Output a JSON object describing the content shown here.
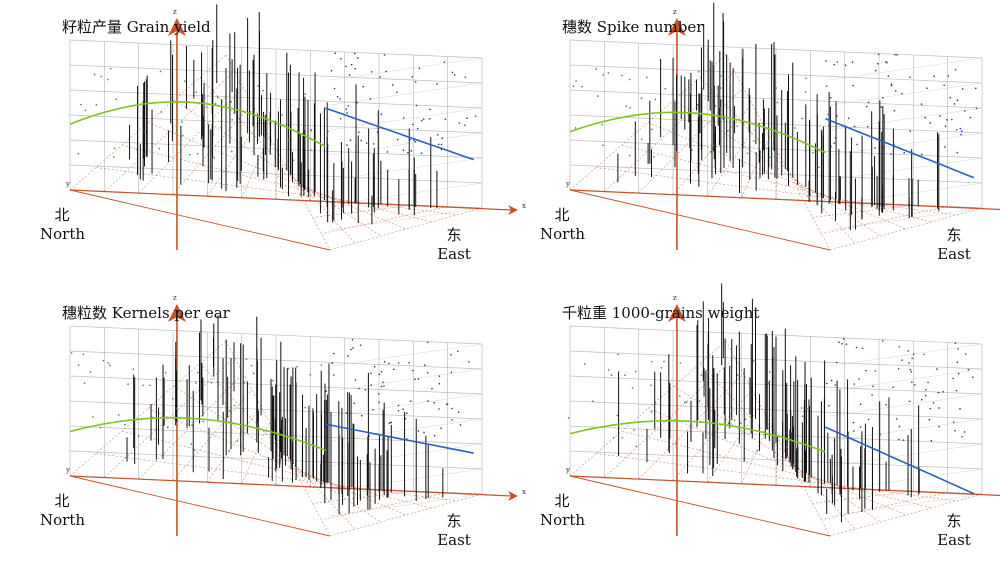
{
  "directions": {
    "north_cn": "北",
    "north_en": "North",
    "east_cn": "东",
    "east_en": "East"
  },
  "axis_letters": {
    "x": "x",
    "y": "y",
    "z": "z"
  },
  "colors": {
    "sticks": "#111111",
    "west_trend": "#7fc31c",
    "east_trend": "#2a5fbd",
    "west_points": "#2e8b2e",
    "east_points": "#1f2f9a",
    "grid": "#bdbdbd",
    "axis": "#c8522b"
  },
  "chart_data": [
    {
      "type": "scatter",
      "title": "籽粒产量 Grain yield",
      "xlabel": "x",
      "ylabel": "y",
      "zlabel": "z",
      "west_trend_peak": 0.62,
      "east_trend_slope": -0.3
    },
    {
      "type": "scatter",
      "title": "穗数 Spike number",
      "xlabel": "x",
      "ylabel": "y",
      "zlabel": "z",
      "west_trend_peak": 0.55,
      "east_trend_slope": -0.35
    },
    {
      "type": "scatter",
      "title": "穗粒数 Kernels per ear",
      "xlabel": "x",
      "ylabel": "y",
      "zlabel": "z",
      "west_trend_peak": 0.42,
      "east_trend_slope": -0.15
    },
    {
      "type": "scatter",
      "title": "千粒重 1000-grains weight",
      "xlabel": "x",
      "ylabel": "y",
      "zlabel": "z",
      "west_trend_peak": 0.4,
      "east_trend_slope": -0.4
    }
  ]
}
